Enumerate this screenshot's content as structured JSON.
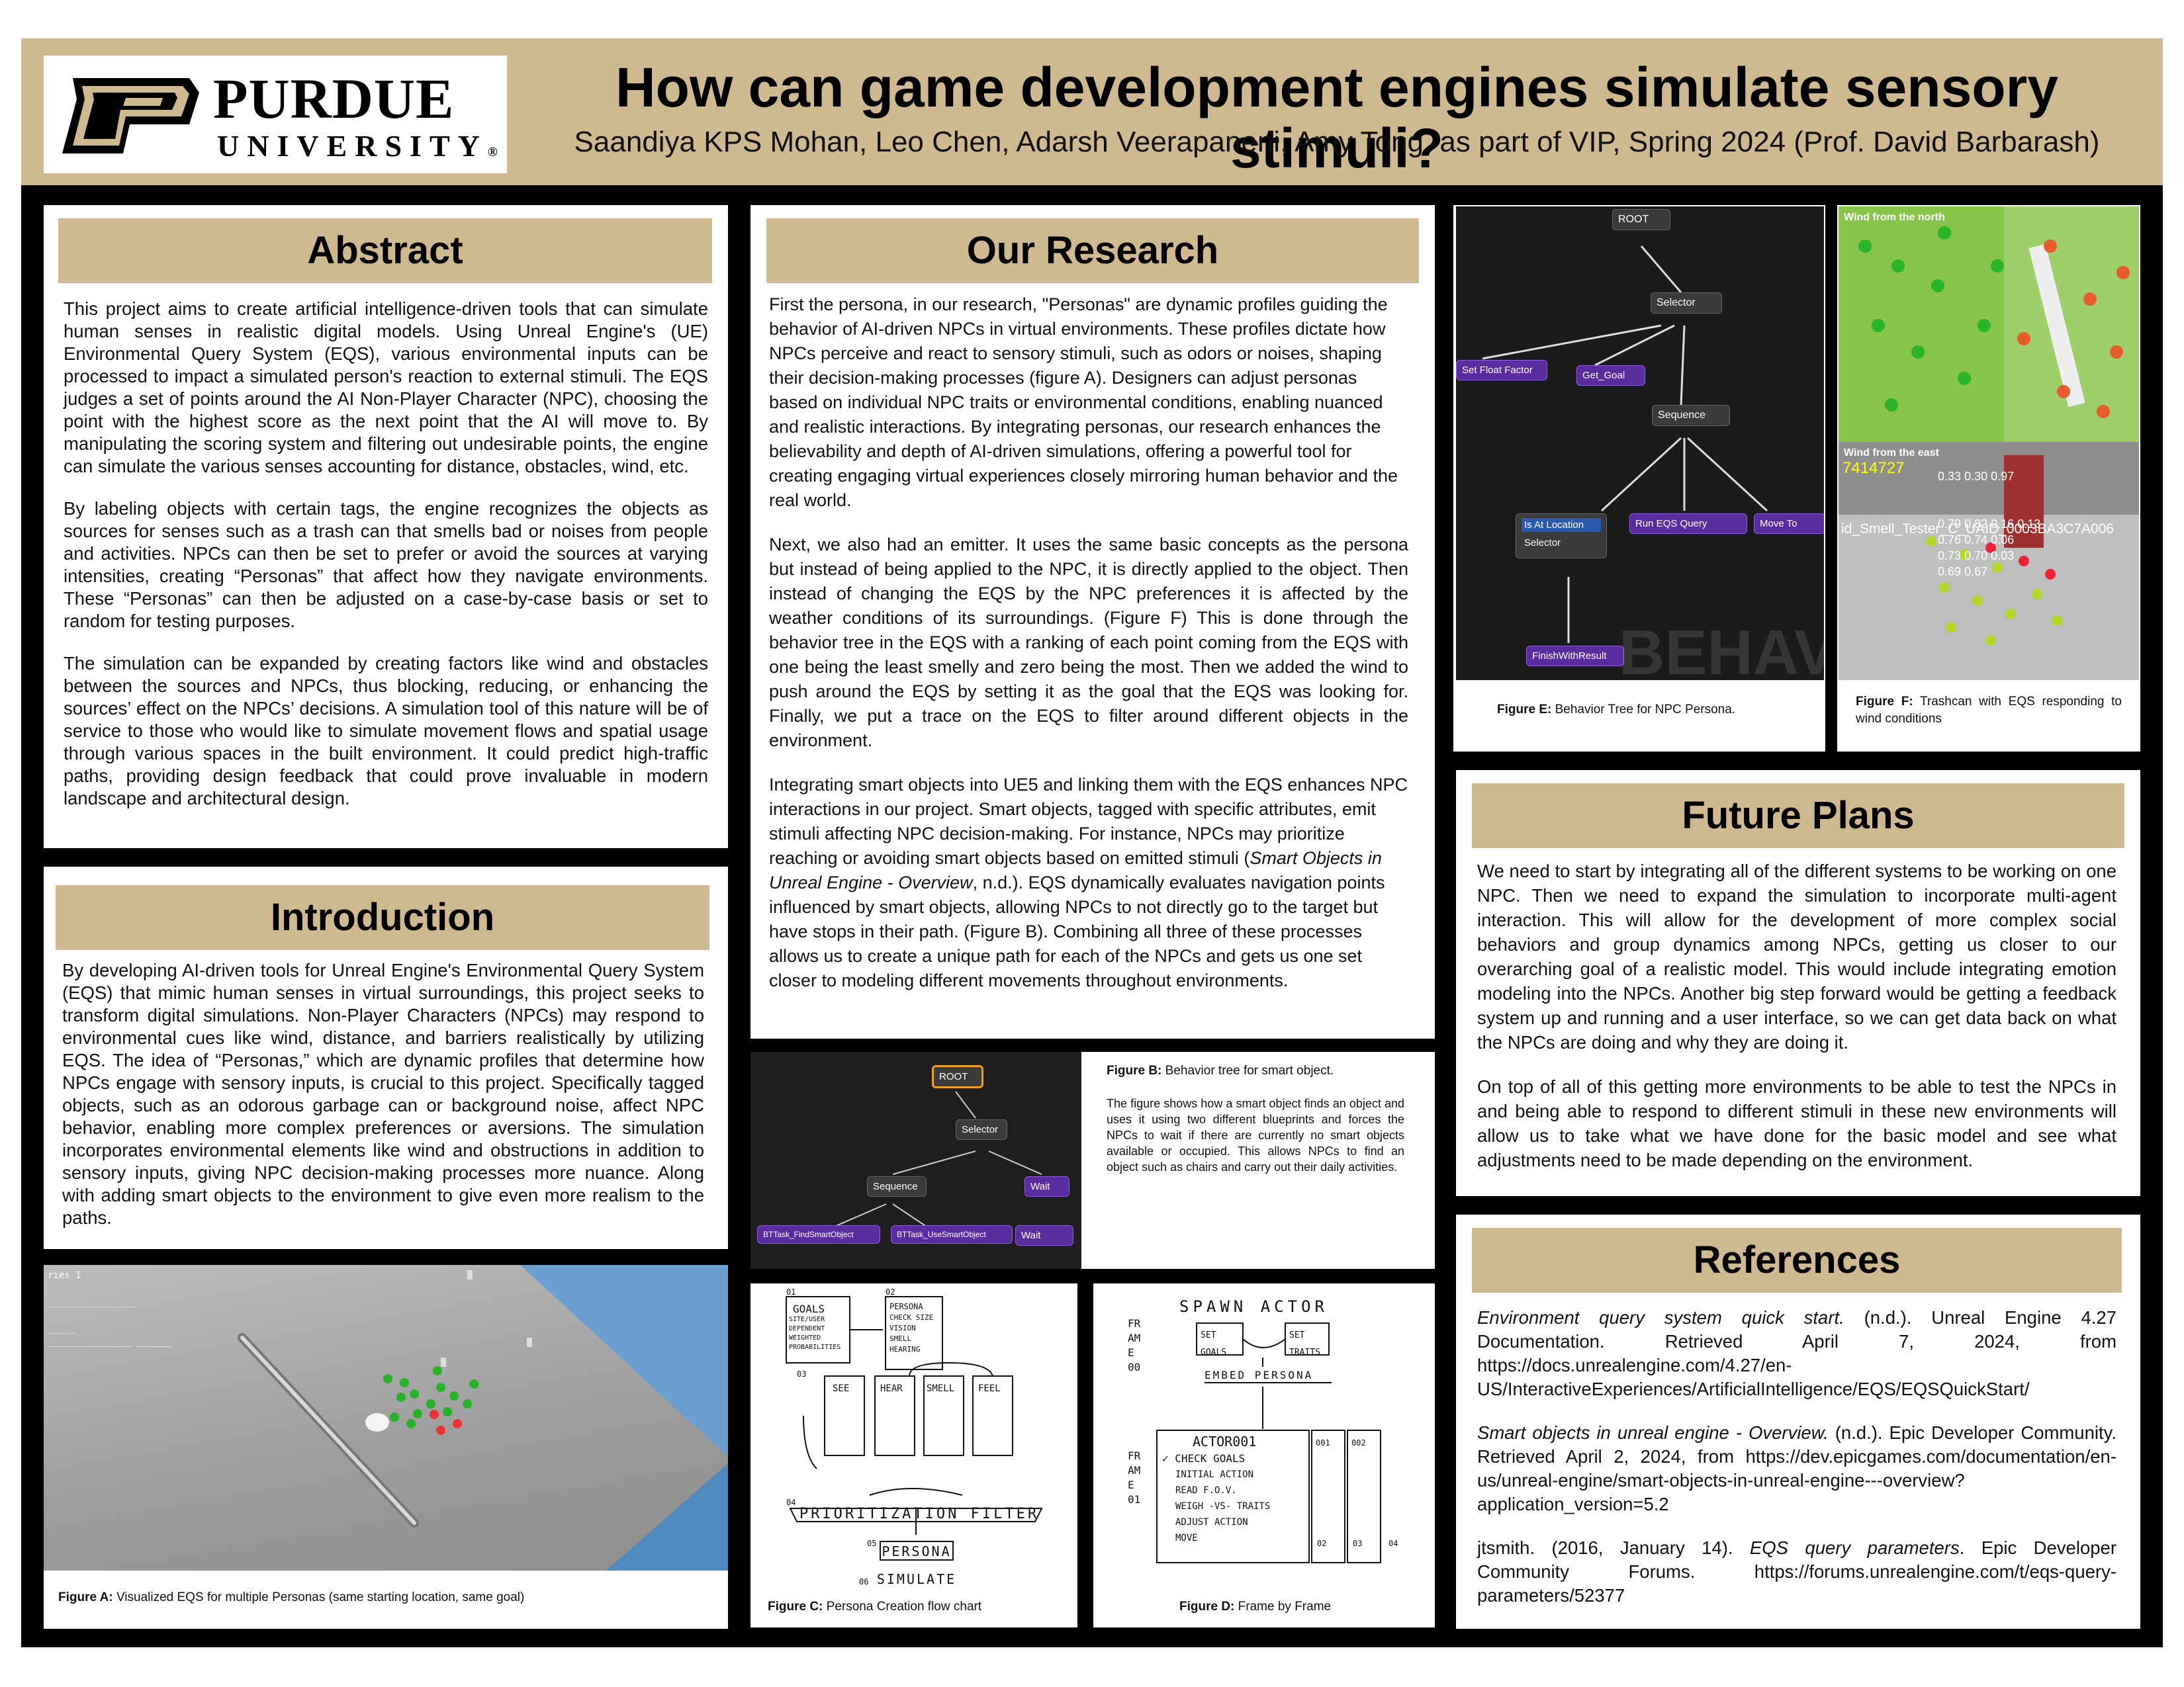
{
  "header": {
    "logo_word": "PURDUE",
    "logo_sub": "UNIVERSITY",
    "logo_mark": "®",
    "title": "How can game development engines simulate sensory stimuli?",
    "authors": "Saandiya KPS Mohan, Leo Chen, Adarsh Veerapaneni, Amy Tong, as part of VIP, Spring 2024 (Prof. David Barbarash)"
  },
  "colors": {
    "gold": "#cfb991",
    "black": "#000000",
    "node_purple": "#5a2ca0"
  },
  "abstract": {
    "heading": "Abstract",
    "p1": "This project aims to create artificial intelligence-driven tools that can simulate human senses in realistic digital models. Using Unreal Engine's (UE) Environmental Query System (EQS), various environmental inputs can be processed to impact a simulated person's reaction to external stimuli. The EQS judges a set of points around the AI Non-Player Character (NPC), choosing the point with the highest score as the next point that the AI will move to. By manipulating the scoring system and filtering out undesirable points, the engine can simulate the various senses accounting for distance, obstacles, wind, etc.",
    "p2": "By labeling objects with certain tags, the engine recognizes the objects as sources for senses such as a trash can that smells bad or noises from people and activities. NPCs can then be set to prefer or avoid the sources at varying intensities, creating “Personas” that affect how they navigate environments. These “Personas” can then be adjusted on a case-by-case basis or set to random for testing purposes.",
    "p3": "The simulation can be expanded by creating factors like wind and obstacles between the sources and NPCs, thus blocking, reducing, or enhancing the sources’ effect on the NPCs’ decisions. A simulation tool of this nature will be of service to those who would like to simulate movement flows and spatial usage through various spaces in the built environment. It could predict high-traffic paths, providing design feedback that could prove invaluable in modern landscape and architectural design."
  },
  "introduction": {
    "heading": "Introduction",
    "p1": "By developing AI-driven tools for Unreal Engine's Environmental Query System (EQS) that mimic human senses in virtual surroundings, this project seeks to transform digital simulations. Non-Player Characters (NPCs) may respond to environmental cues like wind, distance, and barriers realistically by utilizing EQS. The idea of “Personas,” which are dynamic profiles that determine how NPCs engage with sensory inputs, is crucial to this project. Specifically tagged objects, such as an odorous garbage can or background noise, affect NPC behavior, enabling more complex preferences or aversions. The simulation incorporates environmental elements like wind and obstructions in addition to sensory inputs, giving NPC decision-making processes more nuance. Along with adding smart objects to the environment to give even more realism to the paths."
  },
  "figure_a": {
    "caption_label": "Figure A:",
    "caption_text": " Visualized EQS for multiple Personas (same starting location, same goal)"
  },
  "research": {
    "heading": "Our Research",
    "p1": "First the persona, in our research, \"Personas\" are dynamic profiles guiding the behavior of AI-driven NPCs in virtual environments. These profiles dictate how NPCs perceive and react to sensory stimuli, such as odors or noises, shaping their decision-making processes (figure A). Designers can adjust personas based on individual NPC traits or environmental conditions, enabling nuanced and realistic interactions. By integrating personas, our research enhances the believability and depth of AI-driven simulations, offering a powerful tool for creating engaging virtual experiences closely mirroring human behavior and the real world.",
    "p2": "Next, we also had an emitter. It uses the same basic concepts as the persona but instead of being applied to the NPC, it is directly applied to the object. Then instead of changing the EQS by the NPC preferences it is affected by the weather conditions of its surroundings. (Figure F) This is done through the behavior tree in the EQS with a ranking of each point coming from the EQS with one being the least smelly and zero being the most. Then we added the wind to push around the EQS by setting it as the goal that the EQS was looking for. Finally, we put a trace on the EQS to filter around different objects in the environment.",
    "p3a": "Integrating smart objects into UE5 and linking them with the EQS enhances NPC interactions in our project. Smart objects, tagged with specific attributes, emit stimuli affecting NPC decision-making. For instance, NPCs may prioritize reaching or avoiding smart objects based on emitted stimuli (",
    "p3_italic": "Smart Objects in Unreal Engine - Overview",
    "p3b": ", n.d.). EQS dynamically evaluates navigation points influenced by smart objects, allowing NPCs to not directly go to the target but have stops in their path. (Figure B). Combining all three of these processes allows us to create a unique path for each of the NPCs and gets us one set closer to modeling different movements throughout environments."
  },
  "figure_b": {
    "caption_label": "Figure B:",
    "caption_text": " Behavior tree for smart object.",
    "description": "The figure shows how a smart object finds an object and uses it using two different blueprints and forces the NPCs to wait if there are currently no smart objects available or occupied. This allows NPCs to find an object such as chairs and carry out their daily activities.",
    "nodes": {
      "root": "ROOT",
      "selector": "Selector",
      "sequence": "Sequence",
      "wait": "Wait",
      "find": "BTTask_FindSmartObject",
      "use": "BTTask_UseSmartObject",
      "wait2": "Wait"
    }
  },
  "figure_c": {
    "caption_label": "Figure C:",
    "caption_text": " Persona Creation flow chart",
    "sketch": {
      "goals": "GOALS",
      "goals_sub": "SITE/USER DEPENDENT WEIGHTED PROBABILITIES",
      "persona_box": "PERSONA",
      "persona_sub": "CHECK SIZE VISION SMELL HEARING",
      "see": "SEE",
      "hear": "HEAR",
      "smell": "SMELL",
      "feel": "FEEL",
      "filter": "PRIORITIZATION FILTER",
      "persona": "PERSONA",
      "simulate": "SIMULATE",
      "n01": "01",
      "n02": "02",
      "n03": "03",
      "n04": "04",
      "n05": "05",
      "n06": "06"
    }
  },
  "figure_d": {
    "caption_label": "Figure D:",
    "caption_text": " Frame by Frame",
    "sketch": {
      "spawn": "SPAWN ACTOR",
      "frame": "FRAME",
      "f00": "00",
      "f01": "01",
      "f02": "02",
      "f03": "03",
      "f04": "04",
      "set_goals": "SET GOALS",
      "set_traits": "SET TRAITS",
      "embed": "EMBED PERSONA",
      "actor": "ACTOR001",
      "check": "✓ CHECK GOALS",
      "initial": "INITIAL ACTION",
      "read": "READ F.O.V.",
      "weigh": "WEIGH -VS- TRAITS",
      "adjust": "ADJUST ACTION",
      "move": "MOVE",
      "n001": "001",
      "n002": "002"
    }
  },
  "figure_e": {
    "caption_label": "Figure E:",
    "caption_text": "  Behavior Tree for NPC Persona.",
    "nodes": {
      "root": "ROOT",
      "selector": "Selector",
      "set_float": "Set Float Factor",
      "get_goal": "Get_Goal",
      "sequence": "Sequence",
      "is_at": "Is At Location",
      "selector2": "Selector",
      "run_eqs": "Run EQS Query",
      "move_to": "Move To",
      "finish": "FinishWithResult",
      "watermark": "BEHAVI"
    }
  },
  "figure_f": {
    "caption_label": "Figure F:",
    "caption_text": " Trashcan with EQS responding to wind conditions",
    "wind_north": "Wind from the north",
    "wind_east": "Wind from the east",
    "id_text": "7414727",
    "actor_label": "id_Smell_Tester_C_UAID_0003BA3C7A006",
    "values": [
      "0.33",
      "0.30",
      "0.97",
      "0.79",
      "0.82",
      "0.16",
      "0.13",
      "0.76",
      "0.74",
      "0.06",
      "0.73",
      "0.70",
      "0.03",
      "0.69",
      "0.67"
    ]
  },
  "future": {
    "heading": "Future Plans",
    "p1": "We need to start by integrating all of the different systems to be working on one NPC. Then we need to expand the simulation to incorporate multi-agent interaction. This will allow for the development of more complex social behaviors and group dynamics among NPCs, getting us closer to our overarching goal of a realistic model. This would include integrating emotion modeling into the NPCs. Another big step forward would be getting a feedback system up and running and a user interface, so we can get data back on what the NPCs are doing and why they are doing it.",
    "p2": "On top of all of this getting more environments to be able to test the NPCs in and being able to respond to different stimuli in these new environments will allow us to take what we have done for the basic model and see what adjustments need to be made depending on the environment."
  },
  "references": {
    "heading": "References",
    "r1_italic": "Environment query system quick start.",
    "r1_text": " (n.d.). Unreal Engine 4.27 Documentation. Retrieved April 7, 2024, from https://docs.unrealengine.com/4.27/en-US/InteractiveExperiences/ArtificialIntelligence/EQS/EQSQuickStart/",
    "r2_italic": "Smart objects in unreal engine - Overview.",
    "r2_text": " (n.d.). Epic Developer Community. Retrieved April 2, 2024, from https://dev.epicgames.com/documentation/en-us/unreal-engine/smart-objects-in-unreal-engine---overview?application_version=5.2",
    "r3_a": "jtsmith. (2016, January 14). ",
    "r3_italic": "EQS query parameters",
    "r3_b": ". Epic Developer Community Forums. https://forums.unrealengine.com/t/eqs-query-parameters/52377"
  }
}
